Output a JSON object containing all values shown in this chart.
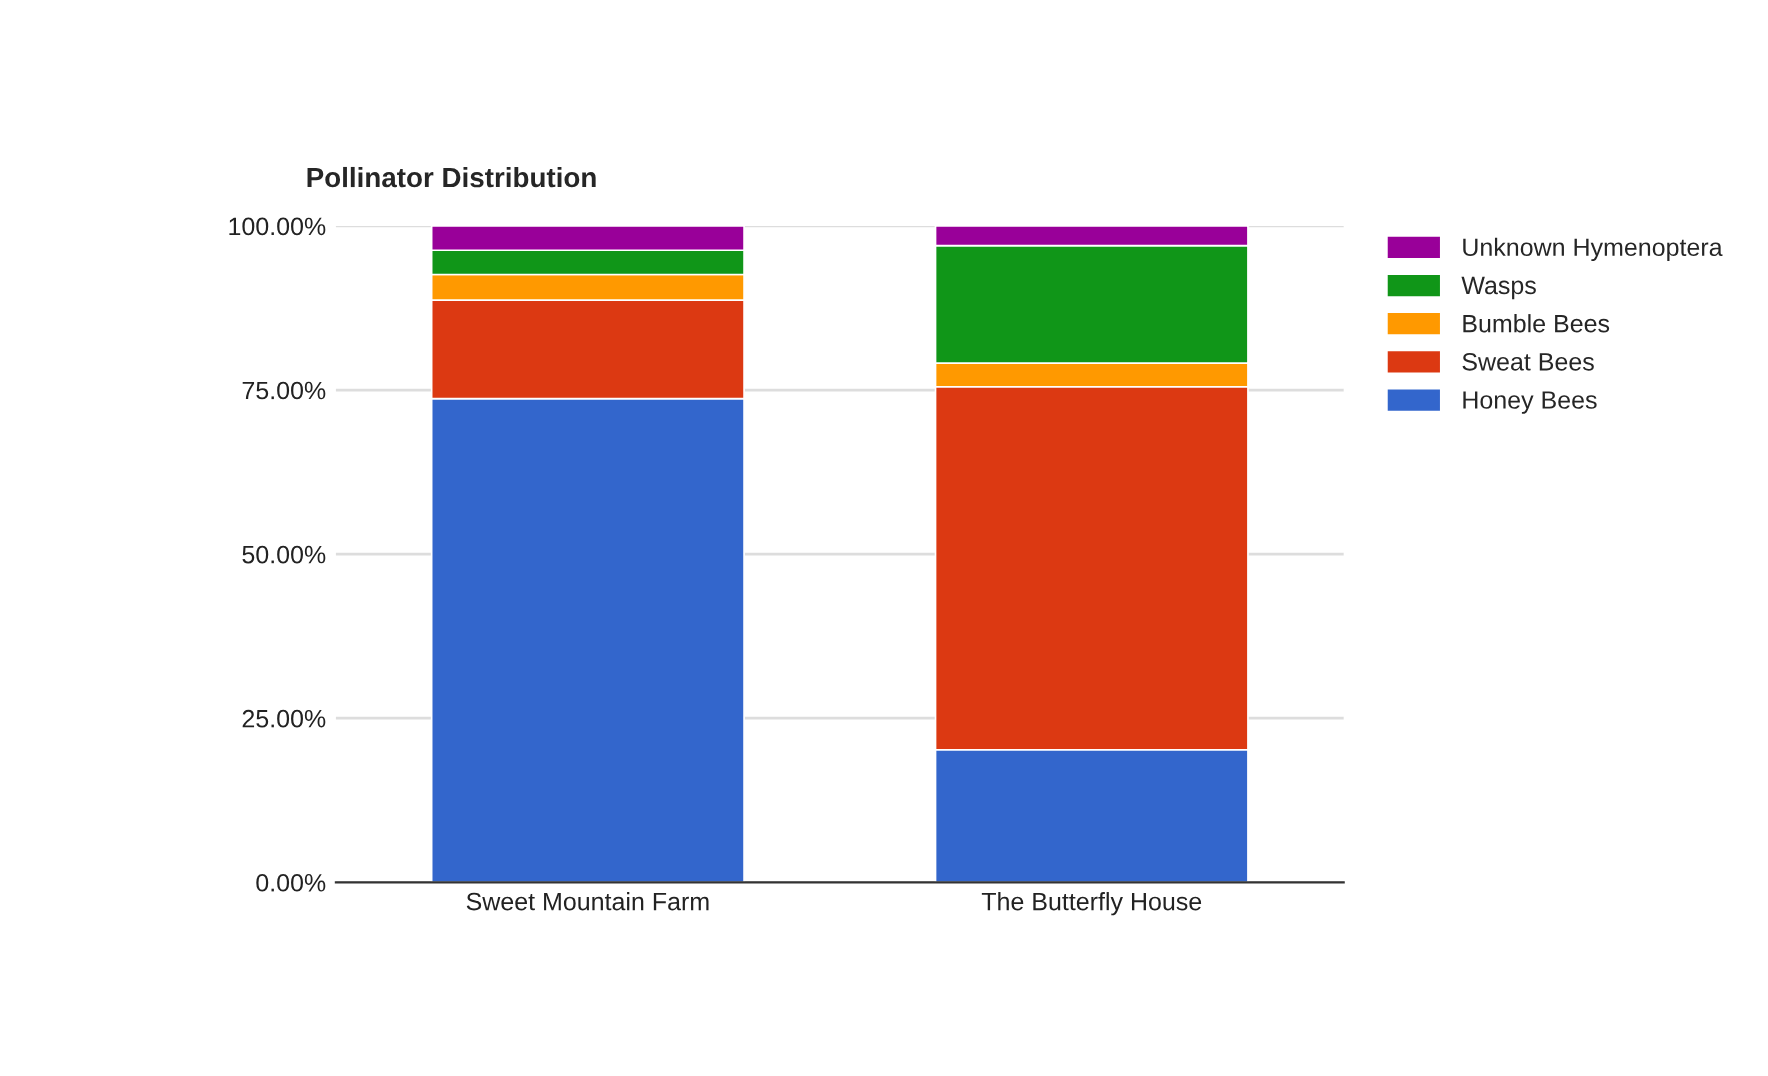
{
  "chart_data": {
    "type": "bar",
    "title": "Pollinator Distribution",
    "categories": [
      "Sweet Mountain Farm",
      "The Butterfly House"
    ],
    "stacked": true,
    "series": [
      {
        "name": "Honey Bees",
        "color": "#3366cc",
        "values": [
          73.7,
          20.2
        ]
      },
      {
        "name": "Sweat Bees",
        "color": "#dc3912",
        "values": [
          15.0,
          55.3
        ]
      },
      {
        "name": "Bumble Bees",
        "color": "#ff9900",
        "values": [
          3.9,
          3.6
        ]
      },
      {
        "name": "Wasps",
        "color": "#109618",
        "values": [
          3.7,
          17.9
        ]
      },
      {
        "name": "Unknown Hymenoptera",
        "color": "#990099",
        "values": [
          3.7,
          3.0
        ]
      }
    ],
    "ylim": [
      0,
      100
    ],
    "yticks": [
      {
        "value": 0,
        "label": "0.00%"
      },
      {
        "value": 25,
        "label": "25.00%"
      },
      {
        "value": 50,
        "label": "50.00%"
      },
      {
        "value": 75,
        "label": "75.00%"
      },
      {
        "value": 100,
        "label": "100.00%"
      }
    ],
    "grid": "y",
    "legend": "right"
  }
}
